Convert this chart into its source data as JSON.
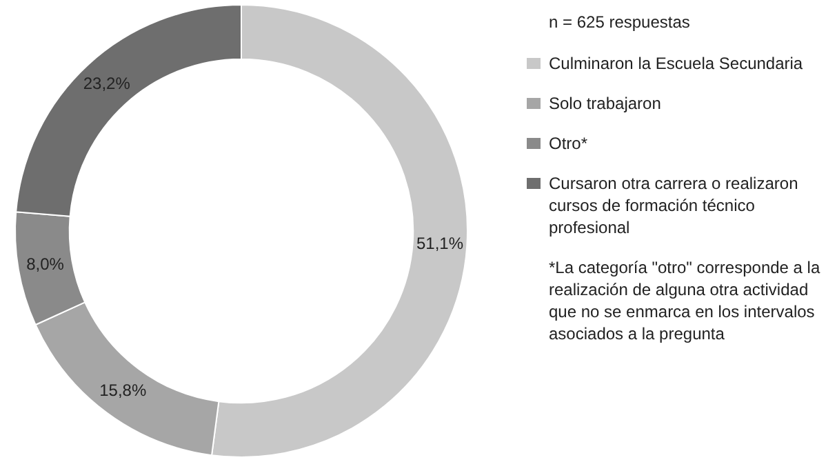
{
  "chart_data": {
    "type": "donut",
    "categories": [
      "Culminaron la Escuela Secundaria",
      "Solo trabajaron",
      "Otro*",
      "Cursaron otra carrera o realizaron cursos de formación técnico profesional"
    ],
    "values": [
      51.1,
      15.8,
      8.0,
      23.2
    ],
    "colors": [
      "#c8c8c8",
      "#a6a6a6",
      "#8a8a8a",
      "#6e6e6e"
    ],
    "value_labels": [
      "51,1%",
      "15,8%",
      "8,0%",
      "23,2%"
    ],
    "legend": "right",
    "annotations": [
      "n = 625 respuestas",
      "*La categoría \"otro\" corresponde a la realización de alguna otra actividad que no se enmarca en los intervalos asociados a la pregunta"
    ]
  }
}
